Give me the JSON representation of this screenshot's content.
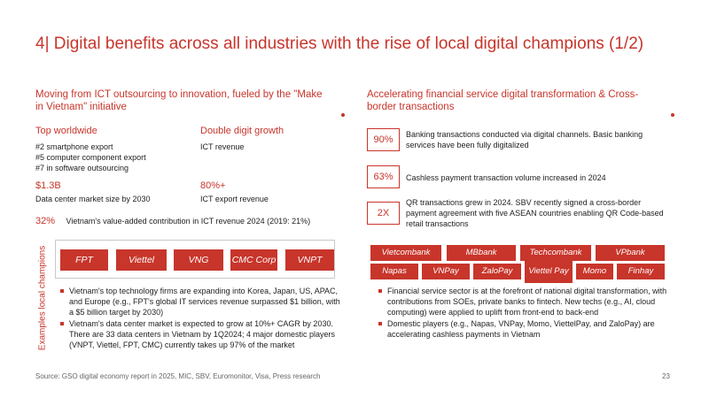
{
  "title": {
    "number": "4|",
    "text": "Digital benefits across all industries with the rise of local digital champions (1/2)"
  },
  "left": {
    "subtitle": "Moving from ICT outsourcing to innovation, fueled by the \"Make in Vietnam\" initiative",
    "top_worldwide": {
      "label": "Top worldwide",
      "lines": [
        "#2 smartphone export",
        "#5 computer component export",
        "#7 in software outsourcing"
      ]
    },
    "double_digit": {
      "label": "Double digit growth",
      "text": "ICT revenue"
    },
    "dc_market": {
      "value": "$1.3B",
      "text": "Data center market size by 2030"
    },
    "ict_export": {
      "value": "80%+",
      "text": "ICT export revenue"
    },
    "value_added": {
      "pct": "32%",
      "text": "Vietnam's value-added contribution in ICT revenue 2024 (2019: 21%)"
    },
    "examples_label": "Examples local champions",
    "champions": [
      "FPT",
      "Viettel",
      "VNG",
      "CMC Corp",
      "VNPT"
    ],
    "bullets": [
      "Vietnam's top technology firms are expanding into Korea, Japan, US, APAC, and Europe (e.g., FPT's global IT services revenue surpassed $1 billion, with a $5 billion target by 2030)",
      "Vietnam's data center market is expected to grow at 10%+ CAGR by 2030. There are 33 data centers in Vietnam by 1Q2024; 4 major domestic players (VNPT, Viettel, FPT, CMC) currently takes up 97% of the market"
    ]
  },
  "right": {
    "subtitle": "Accelerating financial service digital transformation & Cross-border transactions",
    "stats": [
      {
        "value": "90%",
        "text": "Banking transactions conducted via digital channels. Basic banking services have been fully digitalized"
      },
      {
        "value": "63%",
        "text": "Cashless payment transaction volume increased in 2024"
      },
      {
        "value": "2X",
        "text": "QR transactions grew in 2024. SBV recently signed a cross-border payment agreement with five ASEAN countries enabling QR Code-based retail transactions"
      }
    ],
    "players_row1": [
      "Vietcombank",
      "MBbank",
      "Techcombank",
      "VPbank"
    ],
    "players_row2": [
      "Napas",
      "VNPay",
      "ZaloPay",
      "Viettel Pay",
      "Momo",
      "Finhay"
    ],
    "bullets": [
      "Financial service sector is at the forefront of national digital transformation, with contributions from SOEs, private banks to fintech. New techs (e.g., AI, cloud computing) were applied to uplift from front-end to back-end",
      "Domestic players (e.g., Napas, VNPay, Momo, ViettelPay, and ZaloPay) are accelerating cashless payments in Vietnam"
    ]
  },
  "footer": {
    "source": "Source: GSO digital economy report in 2025, MIC, SBV, Euromonitor, Visa, Press research",
    "page": "23"
  },
  "colors": {
    "accent": "#c8352b",
    "text": "#222222",
    "border": "#c9c9c9"
  }
}
